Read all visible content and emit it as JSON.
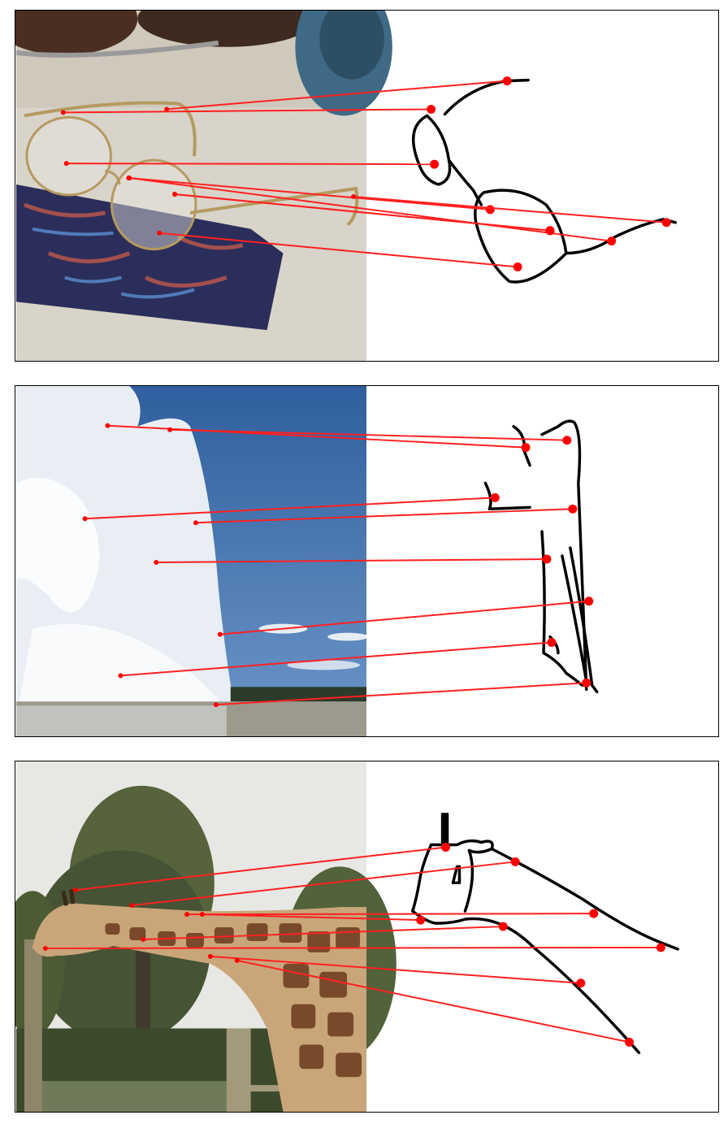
{
  "figure": {
    "panels": [
      {
        "subject": "eyeglasses",
        "photo_side": "left",
        "sketch_side": "right",
        "correspondence_count": 9
      },
      {
        "subject": "geyser",
        "photo_side": "left",
        "sketch_side": "right",
        "correspondence_count": 8
      },
      {
        "subject": "giraffe",
        "photo_side": "left",
        "sketch_side": "right",
        "correspondence_count": 8
      }
    ],
    "colors": {
      "frame": "#000000",
      "match_line": "#ff2020",
      "point": "#ff0000",
      "sketch_stroke": "#000000"
    }
  }
}
